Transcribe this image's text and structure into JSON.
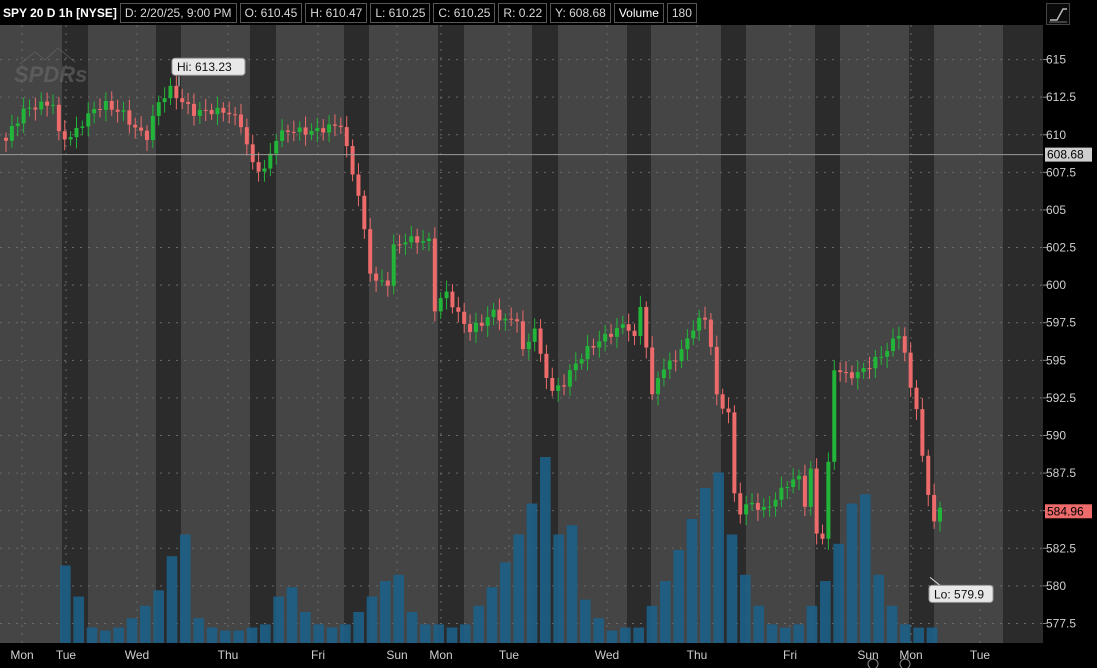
{
  "header": {
    "symbol": "SPY 20 D 1h [NYSE]",
    "date": "D: 2/20/25, 9:00 PM",
    "open": "O: 610.45",
    "high": "H: 610.47",
    "low": "L: 610.25",
    "close": "C: 610.25",
    "range": "R: 0.22",
    "y": "Y: 608.68",
    "volume_label": "Volume",
    "volume_value": "180"
  },
  "colors": {
    "up": "#22b53a",
    "down": "#ee6b6b",
    "volume": "#1d5f86",
    "session_light": "#454545",
    "session_dark": "#2b2b2b",
    "crosshair": "#9a9a9a"
  },
  "chart_data": {
    "type": "candlestick",
    "watermark": "SPDRs",
    "y_ticks": [
      615,
      612.5,
      610,
      607.5,
      605,
      602.5,
      600,
      597.5,
      595,
      592.5,
      590,
      587.5,
      585,
      582.5,
      580,
      577.5
    ],
    "y_tick_labels": [
      "615",
      "612.5",
      "610",
      "607.5",
      "605",
      "602.5",
      "600",
      "597.5",
      "595",
      "592.5",
      "590",
      "587.5",
      "585",
      "582.5",
      "580",
      "577.5"
    ],
    "ylim": [
      576.2,
      617.3
    ],
    "x_labels": [
      "Mon",
      "Tue",
      "Wed",
      "Thu",
      "Fri",
      "Sun",
      "Mon",
      "Tue",
      "Wed",
      "Thu",
      "Fri",
      "Sun",
      "Mon",
      "Tue"
    ],
    "crosshair_value": 608.68,
    "crosshair_label": "608.68",
    "last_price": 584.96,
    "last_price_label": "584.96",
    "high_marker": {
      "label": "Hi: 613.23",
      "value": 613.23
    },
    "low_marker": {
      "label": "Lo: 579.9",
      "value": 579.9
    },
    "price_anchors": [
      [
        0,
        609.6
      ],
      [
        1,
        610.4
      ],
      [
        3,
        611.6
      ],
      [
        5,
        611.9
      ],
      [
        8,
        612.1
      ],
      [
        9,
        610.0
      ],
      [
        11,
        609.8
      ],
      [
        13,
        610.8
      ],
      [
        15,
        611.7
      ],
      [
        17,
        612.0
      ],
      [
        20,
        611.4
      ],
      [
        22,
        610.4
      ],
      [
        24,
        609.9
      ],
      [
        26,
        612.2
      ],
      [
        28,
        613.0
      ],
      [
        30,
        612.2
      ],
      [
        32,
        611.5
      ],
      [
        35,
        611.6
      ],
      [
        38,
        611.5
      ],
      [
        40,
        610.7
      ],
      [
        42,
        608.0
      ],
      [
        44,
        607.6
      ],
      [
        46,
        609.8
      ],
      [
        48,
        610.3
      ],
      [
        52,
        610.2
      ],
      [
        55,
        610.5
      ],
      [
        57,
        610.7
      ],
      [
        58,
        609.0
      ],
      [
        60,
        606.0
      ],
      [
        62,
        601.0
      ],
      [
        63,
        600.2
      ],
      [
        65,
        600.2
      ],
      [
        66,
        602.5
      ],
      [
        68,
        603.0
      ],
      [
        70,
        603.0
      ],
      [
        72,
        602.9
      ],
      [
        73,
        598.5
      ],
      [
        75,
        599.5
      ],
      [
        77,
        598.0
      ],
      [
        79,
        597.0
      ],
      [
        81,
        597.5
      ],
      [
        83,
        598.2
      ],
      [
        85,
        597.6
      ],
      [
        87,
        597.8
      ],
      [
        88,
        595.5
      ],
      [
        90,
        597.2
      ],
      [
        91,
        595.2
      ],
      [
        93,
        592.9
      ],
      [
        95,
        593.5
      ],
      [
        97,
        594.8
      ],
      [
        99,
        595.7
      ],
      [
        101,
        596.3
      ],
      [
        103,
        596.8
      ],
      [
        105,
        597.3
      ],
      [
        106,
        597.2
      ],
      [
        107,
        596.4
      ],
      [
        108,
        598.6
      ],
      [
        109,
        596.0
      ],
      [
        110,
        592.5
      ],
      [
        111,
        594.0
      ],
      [
        113,
        594.8
      ],
      [
        115,
        595.6
      ],
      [
        117,
        597.2
      ],
      [
        118,
        597.6
      ],
      [
        119,
        597.8
      ],
      [
        120,
        596.0
      ],
      [
        121,
        592.5
      ],
      [
        123,
        591.5
      ],
      [
        124,
        586.0
      ],
      [
        125,
        585.0
      ],
      [
        127,
        585.5
      ],
      [
        129,
        585.0
      ],
      [
        131,
        585.8
      ],
      [
        133,
        586.8
      ],
      [
        135,
        587.2
      ],
      [
        136,
        585.5
      ],
      [
        137,
        587.6
      ],
      [
        138,
        583.5
      ],
      [
        139,
        583.3
      ],
      [
        140,
        588.0
      ],
      [
        141,
        594.5
      ],
      [
        143,
        594.0
      ],
      [
        145,
        594.1
      ],
      [
        147,
        594.7
      ],
      [
        149,
        595.3
      ],
      [
        151,
        596.2
      ],
      [
        152,
        596.8
      ],
      [
        153,
        595.5
      ],
      [
        154,
        593.0
      ],
      [
        155,
        592.0
      ],
      [
        156,
        588.5
      ],
      [
        157,
        586.0
      ],
      [
        158,
        584.5
      ],
      [
        159,
        584.96
      ]
    ],
    "volume_shape": [
      0.25,
      0.15,
      0.05,
      0.04,
      0.05,
      0.08,
      0.12,
      0.17,
      0.28,
      0.35,
      0.08,
      0.05,
      0.04,
      0.04,
      0.05,
      0.06,
      0.15,
      0.18,
      0.1,
      0.06,
      0.05,
      0.06,
      0.1,
      0.15,
      0.2,
      0.22,
      0.1,
      0.06,
      0.06,
      0.05,
      0.06,
      0.12,
      0.18,
      0.26,
      0.35,
      0.45,
      0.6,
      0.35,
      0.38,
      0.14,
      0.08,
      0.04,
      0.05,
      0.05,
      0.12,
      0.2,
      0.3,
      0.4,
      0.5,
      0.55,
      0.35,
      0.22,
      0.12,
      0.06,
      0.05,
      0.06,
      0.12,
      0.2,
      0.32,
      0.45,
      0.48,
      0.22,
      0.12,
      0.06,
      0.05,
      0.05
    ]
  }
}
